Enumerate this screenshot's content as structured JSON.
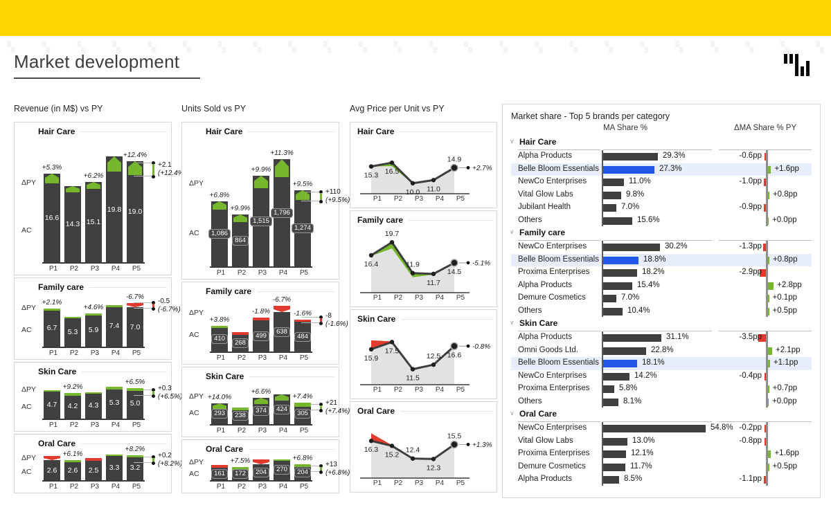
{
  "page": {
    "title": "Market development"
  },
  "colors": {
    "accent_yellow": "#FFD500",
    "bar_dark": "#404040",
    "positive_green": "#76B82D",
    "negative_red": "#E23A2E",
    "highlight_blue": "#2156E8",
    "highlight_row_bg": "#E8EDFB",
    "area_gray": "#E2E2E2"
  },
  "columns": {
    "revenue": {
      "title": "Revenue (in M$) vs PY"
    },
    "units": {
      "title": "Units Sold vs PY"
    },
    "price": {
      "title": "Avg Price per Unit vs PY"
    }
  },
  "bar_axis_labels": {
    "delta": "ΔPY",
    "actual": "AC"
  },
  "chart_data": [
    {
      "type": "bar",
      "group": "revenue",
      "title": "Hair Care",
      "categories": [
        "P1",
        "P2",
        "P3",
        "P4",
        "P5"
      ],
      "values": [
        16.6,
        14.3,
        15.1,
        19.8,
        19.0
      ],
      "value_labels": [
        "16.6",
        "14.3",
        "15.1",
        "19.8",
        "19.0"
      ],
      "pct_labels": [
        "+5.3%",
        "",
        "+6.2%",
        "",
        "+12.4%"
      ],
      "caps": [
        {
          "c": "g",
          "h": 14
        },
        {
          "c": "g",
          "h": 9
        },
        {
          "c": "g",
          "h": 10
        },
        {
          "c": "g",
          "h": 22
        },
        {
          "c": "g",
          "h": 20
        }
      ],
      "end_note": {
        "value": "+2.1",
        "pct": "(+12.4%)",
        "positive": true
      },
      "ylim": [
        0,
        20.5
      ]
    },
    {
      "type": "bar",
      "group": "revenue",
      "title": "Family care",
      "categories": [
        "P1",
        "P2",
        "P3",
        "P4",
        "P5"
      ],
      "values": [
        6.7,
        5.3,
        5.9,
        7.4,
        7.0
      ],
      "value_labels": [
        "6.7",
        "5.3",
        "5.9",
        "7.4",
        "7.0"
      ],
      "pct_labels": [
        "+2.1%",
        "",
        "+4.6%",
        "",
        "-6.7%"
      ],
      "caps": [
        {
          "c": "g",
          "h": 3
        },
        {
          "c": "g",
          "h": 2
        },
        {
          "c": "g",
          "h": 3
        },
        {
          "c": "g",
          "h": 3
        },
        {
          "c": "r",
          "h": 6
        }
      ],
      "end_note": {
        "value": "-0.5",
        "pct": "(-6.7%)",
        "positive": false
      },
      "ylim": [
        0,
        7.6
      ]
    },
    {
      "type": "bar",
      "group": "revenue",
      "title": "Skin Care",
      "categories": [
        "P1",
        "P2",
        "P3",
        "P4",
        "P5"
      ],
      "values": [
        4.7,
        4.2,
        4.3,
        5.3,
        5.0
      ],
      "value_labels": [
        "4.7",
        "4.2",
        "4.3",
        "5.3",
        "5.0"
      ],
      "pct_labels": [
        "",
        "+9.2%",
        "",
        "",
        "+6.5%"
      ],
      "caps": [
        {
          "c": "g",
          "h": 2
        },
        {
          "c": "g",
          "h": 4
        },
        {
          "c": "g",
          "h": 2
        },
        {
          "c": "g",
          "h": 4
        },
        {
          "c": "g",
          "h": 4
        }
      ],
      "end_note": {
        "value": "+0.3",
        "pct": "(+6.5%)",
        "positive": true
      },
      "ylim": [
        0,
        5.5
      ]
    },
    {
      "type": "bar",
      "group": "revenue",
      "title": "Oral Care",
      "categories": [
        "P1",
        "P2",
        "P3",
        "P4",
        "P5"
      ],
      "values": [
        2.6,
        2.6,
        2.5,
        3.3,
        3.2
      ],
      "value_labels": [
        "2.6",
        "2.6",
        "2.5",
        "3.3",
        "3.2"
      ],
      "pct_labels": [
        "",
        "+6.1%",
        "",
        "",
        "+8.2%"
      ],
      "caps": [
        {
          "c": "r",
          "h": 6
        },
        {
          "c": "g",
          "h": 3
        },
        {
          "c": "r",
          "h": 4
        },
        {
          "c": "g",
          "h": 2
        },
        {
          "c": "g",
          "h": 3
        }
      ],
      "end_note": {
        "value": "+0.2",
        "pct": "(+8.2%)",
        "positive": true
      },
      "ylim": [
        0,
        3.4
      ]
    },
    {
      "type": "bar",
      "group": "units",
      "title": "Hair Care",
      "categories": [
        "P1",
        "P2",
        "P3",
        "P4",
        "P5"
      ],
      "values": [
        1086,
        864,
        1515,
        1796,
        1274
      ],
      "value_labels": [
        "1,086",
        "864",
        "1,515",
        "1,796",
        "1,274"
      ],
      "pct_labels": [
        "+6.8%",
        "+9.9%",
        "+9.9%",
        "+11.3%",
        "+9.5%"
      ],
      "caps": [
        {
          "c": "g",
          "h": 12
        },
        {
          "c": "g",
          "h": 11
        },
        {
          "c": "g",
          "h": 18
        },
        {
          "c": "g",
          "h": 26
        },
        {
          "c": "g",
          "h": 14
        }
      ],
      "end_note": {
        "value": "+110",
        "pct": "(+9.5%)",
        "positive": true
      },
      "ylim": [
        0,
        1900
      ],
      "badge": true
    },
    {
      "type": "bar",
      "group": "units",
      "title": "Family care",
      "categories": [
        "P1",
        "P2",
        "P3",
        "P4",
        "P5"
      ],
      "values": [
        410,
        268,
        499,
        638,
        484
      ],
      "value_labels": [
        "410",
        "268",
        "499",
        "638",
        "484"
      ],
      "pct_labels": [
        "+3.8%",
        "",
        "-1.8%",
        "-6.7%",
        "-1.6%"
      ],
      "caps": [
        {
          "c": "g",
          "h": 3
        },
        {
          "c": "r",
          "h": 4
        },
        {
          "c": "r",
          "h": 4
        },
        {
          "c": "r",
          "h": 9
        },
        {
          "c": "r",
          "h": 3
        }
      ],
      "end_note": {
        "value": "-8",
        "pct": "(-1.6%)",
        "positive": false
      },
      "ylim": [
        0,
        690
      ],
      "badge": true
    },
    {
      "type": "bar",
      "group": "units",
      "title": "Skin Care",
      "categories": [
        "P1",
        "P2",
        "P3",
        "P4",
        "P5"
      ],
      "values": [
        293,
        238,
        374,
        424,
        305
      ],
      "value_labels": [
        "293",
        "238",
        "374",
        "424",
        "305"
      ],
      "pct_labels": [
        "+14.0%",
        "",
        "+6.6%",
        "",
        "+7.4%"
      ],
      "caps": [
        {
          "c": "g",
          "h": 8
        },
        {
          "c": "g",
          "h": 4
        },
        {
          "c": "g",
          "h": 9
        },
        {
          "c": "g",
          "h": 9
        },
        {
          "c": "g",
          "h": 6
        }
      ],
      "end_note": {
        "value": "+21",
        "pct": "(+7.4%)",
        "positive": true
      },
      "ylim": [
        0,
        450
      ],
      "badge": true
    },
    {
      "type": "bar",
      "group": "units",
      "title": "Oral Care",
      "categories": [
        "P1",
        "P2",
        "P3",
        "P4",
        "P5"
      ],
      "values": [
        161,
        172,
        204,
        270,
        204
      ],
      "value_labels": [
        "161",
        "172",
        "204",
        "270",
        "204"
      ],
      "pct_labels": [
        "",
        "+7.5%",
        "",
        "",
        "+6.8%"
      ],
      "caps": [
        {
          "c": "r",
          "h": 4
        },
        {
          "c": "g",
          "h": 5
        },
        {
          "c": "r",
          "h": 7
        },
        {
          "c": "g",
          "h": 2
        },
        {
          "c": "g",
          "h": 4
        }
      ],
      "end_note": {
        "value": "+13",
        "pct": "(+6.8%)",
        "positive": true
      },
      "ylim": [
        0,
        290
      ],
      "badge": true
    },
    {
      "type": "line",
      "group": "price",
      "title": "Hair Care",
      "categories": [
        "P1",
        "P2",
        "P3",
        "P4",
        "P5"
      ],
      "values": [
        15.3,
        16.5,
        10.0,
        11.0,
        14.9
      ],
      "value_labels": [
        "15.3",
        "16.5",
        "10.0",
        "11.0",
        "14.9"
      ],
      "label_pos": [
        "below",
        "below",
        "below",
        "below",
        "above"
      ],
      "end_note": {
        "pct": "+2.7%",
        "positive": true
      },
      "ylim": [
        8,
        22
      ],
      "accent": {
        "kind": "green-band",
        "offsets": [
          0,
          5,
          1,
          0
        ]
      }
    },
    {
      "type": "line",
      "group": "price",
      "title": "Family care",
      "categories": [
        "P1",
        "P2",
        "P3",
        "P4",
        "P5"
      ],
      "values": [
        16.4,
        19.7,
        11.9,
        11.7,
        14.5
      ],
      "value_labels": [
        "16.4",
        "19.7",
        "11.9",
        "11.7",
        "14.5"
      ],
      "label_pos": [
        "below",
        "above",
        "above",
        "below",
        "below"
      ],
      "end_note": {
        "pct": "-5.1%",
        "positive": false
      },
      "ylim": [
        8,
        22
      ],
      "accent": {
        "kind": "green-band",
        "offsets": [
          1,
          9,
          6,
          1
        ]
      }
    },
    {
      "type": "line",
      "group": "price",
      "title": "Skin Care",
      "categories": [
        "P1",
        "P2",
        "P3",
        "P4",
        "P5"
      ],
      "values": [
        15.9,
        17.5,
        11.5,
        12.5,
        16.6
      ],
      "value_labels": [
        "15.9",
        "17.5",
        "11.5",
        "12.5",
        "16.6"
      ],
      "label_pos": [
        "below",
        "below",
        "below",
        "above",
        "below"
      ],
      "end_note": {
        "pct": "-0.8%",
        "positive": false
      },
      "ylim": [
        9,
        20
      ],
      "accent": {
        "kind": "red-wedge",
        "drop": 13
      }
    },
    {
      "type": "line",
      "group": "price",
      "title": "Oral Care",
      "categories": [
        "P1",
        "P2",
        "P3",
        "P4",
        "P5"
      ],
      "values": [
        16.3,
        15.2,
        12.4,
        12.3,
        15.5
      ],
      "value_labels": [
        "16.3",
        "15.2",
        "12.4",
        "12.3",
        "15.5"
      ],
      "label_pos": [
        "below",
        "below",
        "above",
        "below",
        "above"
      ],
      "end_note": {
        "pct": "+1.3%",
        "positive": true
      },
      "ylim": [
        9,
        20
      ],
      "accent": {
        "kind": "red-wedge",
        "drop": 11
      }
    },
    {
      "type": "bar",
      "orientation": "horizontal",
      "group": "market_share",
      "title": "Market share - Top 5 brands per category",
      "column_headers": [
        "MA Share %",
        "ΔMA Share % PY"
      ],
      "share_axis_max": 60,
      "categories": [
        {
          "name": "Hair Care",
          "rows": [
            {
              "brand": "Alpha Products",
              "share": 29.3,
              "share_label": "29.3%",
              "delta": -0.6,
              "delta_label": "-0.6pp",
              "highlight": false
            },
            {
              "brand": "Belle Bloom Essentials",
              "share": 27.3,
              "share_label": "27.3%",
              "delta": 1.6,
              "delta_label": "+1.6pp",
              "highlight": true
            },
            {
              "brand": "NewCo Enterprises",
              "share": 11.0,
              "share_label": "11.0%",
              "delta": -1.0,
              "delta_label": "-1.0pp",
              "highlight": false
            },
            {
              "brand": "Vital Glow Labs",
              "share": 9.8,
              "share_label": "9.8%",
              "delta": 0.8,
              "delta_label": "+0.8pp",
              "highlight": false
            },
            {
              "brand": "Jubilant Health",
              "share": 7.0,
              "share_label": "7.0%",
              "delta": -0.9,
              "delta_label": "-0.9pp",
              "highlight": false
            },
            {
              "brand": "Others",
              "share": 15.6,
              "share_label": "15.6%",
              "delta": 0.0,
              "delta_label": "+0.0pp",
              "highlight": false
            }
          ]
        },
        {
          "name": "Family care",
          "rows": [
            {
              "brand": "NewCo Enterprises",
              "share": 30.2,
              "share_label": "30.2%",
              "delta": -1.3,
              "delta_label": "-1.3pp",
              "highlight": false
            },
            {
              "brand": "Belle Bloom Essentials",
              "share": 18.8,
              "share_label": "18.8%",
              "delta": 0.8,
              "delta_label": "+0.8pp",
              "highlight": true
            },
            {
              "brand": "Proxima Enterprises",
              "share": 18.2,
              "share_label": "18.2%",
              "delta": -2.9,
              "delta_label": "-2.9pp",
              "highlight": false
            },
            {
              "brand": "Alpha Products",
              "share": 15.4,
              "share_label": "15.4%",
              "delta": 2.8,
              "delta_label": "+2.8pp",
              "highlight": false
            },
            {
              "brand": "Demure Cosmetics",
              "share": 7.0,
              "share_label": "7.0%",
              "delta": 0.1,
              "delta_label": "+0.1pp",
              "highlight": false
            },
            {
              "brand": "Others",
              "share": 10.4,
              "share_label": "10.4%",
              "delta": 0.5,
              "delta_label": "+0.5pp",
              "highlight": false
            }
          ]
        },
        {
          "name": "Skin Care",
          "rows": [
            {
              "brand": "Alpha Products",
              "share": 31.1,
              "share_label": "31.1%",
              "delta": -3.5,
              "delta_label": "-3.5pp",
              "highlight": false
            },
            {
              "brand": "Omni Goods Ltd.",
              "share": 22.8,
              "share_label": "22.8%",
              "delta": 2.1,
              "delta_label": "+2.1pp",
              "highlight": false
            },
            {
              "brand": "Belle Bloom Essentials",
              "share": 18.1,
              "share_label": "18.1%",
              "delta": 1.1,
              "delta_label": "+1.1pp",
              "highlight": true
            },
            {
              "brand": "NewCo Enterprises",
              "share": 14.2,
              "share_label": "14.2%",
              "delta": -0.4,
              "delta_label": "-0.4pp",
              "highlight": false
            },
            {
              "brand": "Proxima Enterprises",
              "share": 5.8,
              "share_label": "5.8%",
              "delta": 0.7,
              "delta_label": "+0.7pp",
              "highlight": false
            },
            {
              "brand": "Others",
              "share": 8.1,
              "share_label": "8.1%",
              "delta": 0.0,
              "delta_label": "+0.0pp",
              "highlight": false
            }
          ]
        },
        {
          "name": "Oral Care",
          "rows": [
            {
              "brand": "NewCo Enterprises",
              "share": 54.8,
              "share_label": "54.8%",
              "delta": -0.2,
              "delta_label": "-0.2pp",
              "highlight": false
            },
            {
              "brand": "Vital Glow Labs",
              "share": 13.0,
              "share_label": "13.0%",
              "delta": -0.8,
              "delta_label": "-0.8pp",
              "highlight": false
            },
            {
              "brand": "Proxima Enterprises",
              "share": 12.1,
              "share_label": "12.1%",
              "delta": 1.6,
              "delta_label": "+1.6pp",
              "highlight": false
            },
            {
              "brand": "Demure Cosmetics",
              "share": 11.7,
              "share_label": "11.7%",
              "delta": 0.5,
              "delta_label": "+0.5pp",
              "highlight": false
            },
            {
              "brand": "Alpha Products",
              "share": 8.5,
              "share_label": "8.5%",
              "delta": -1.1,
              "delta_label": "-1.1pp",
              "highlight": false
            }
          ]
        }
      ]
    }
  ]
}
